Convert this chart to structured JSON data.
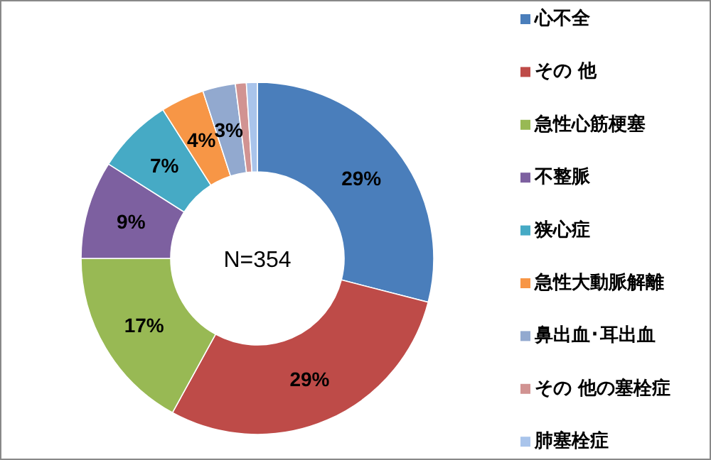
{
  "chart_data": {
    "type": "donut",
    "categories": [
      "心不全",
      "その 他",
      "急性心筋梗塞",
      "不整脈",
      "狭心症",
      "急性大動脈解離",
      "鼻出血･耳出血",
      "その 他の塞栓症",
      "肺塞栓症"
    ],
    "values": [
      29,
      29,
      17,
      9,
      7,
      4,
      3,
      1,
      1
    ],
    "colors": [
      "#4a7ebb",
      "#be4b48",
      "#98b954",
      "#7d60a0",
      "#46aac5",
      "#f79646",
      "#92a9cf",
      "#d19392",
      "#a9c4eb"
    ],
    "value_labels": [
      "29%",
      "29%",
      "17%",
      "9%",
      "7%",
      "4%",
      "3%",
      null,
      null
    ],
    "annotations": [
      "N=354"
    ],
    "legend": "right"
  }
}
